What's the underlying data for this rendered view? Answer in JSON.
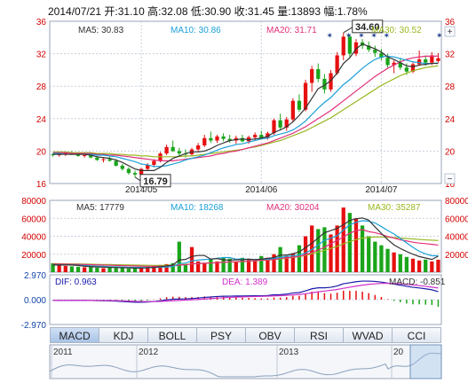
{
  "header": {
    "date": "2014/07/21",
    "open_label": "开:",
    "open": "31.10",
    "high_label": "高:",
    "high": "32.08",
    "low_label": "低:",
    "low": "30.90",
    "close_label": "收:",
    "close": "31.45",
    "volume_label": "量:",
    "volume": "13893",
    "change_label": "幅:",
    "change": "1.78%"
  },
  "price_legend": {
    "ma5": "MA5: 30.83",
    "ma10": "MA10: 30.86",
    "ma20": "MA20: 31.71",
    "ma30": "MA30: 30.52"
  },
  "volume_legend": {
    "ma5": "MA5: 17779",
    "ma10": "MA10: 18268",
    "ma20": "MA20: 30204",
    "ma30": "MA30: 35287"
  },
  "macd_legend": {
    "dif": "DIF: 0.963",
    "dea": "DEA: 1.389",
    "macd": "MACD: -0.851"
  },
  "colors": {
    "up": "#e61010",
    "down": "#1aa51a",
    "ma5": "#333333",
    "ma10": "#1aa0d8",
    "ma20": "#e0307a",
    "ma30": "#98b820",
    "grid": "#c8d0dc",
    "axis_red": "#d40000",
    "axis_blue": "#1144aa"
  },
  "tabs": [
    "MACD",
    "KDJ",
    "BOLL",
    "PSY",
    "OBV",
    "RSI",
    "WVAD",
    "CCI"
  ],
  "active_tab": "MACD",
  "navigator": {
    "years": [
      "2011",
      "2012",
      "2013",
      "20"
    ]
  },
  "chart_data": [
    {
      "type": "candlestick",
      "yticks": [
        "36",
        "32",
        "28",
        "24",
        "20",
        "16"
      ],
      "ylim": [
        16,
        36
      ],
      "xticks": [
        "2014/05",
        "2014/06",
        "2014/07"
      ],
      "annotations": {
        "max": "34.60",
        "min": "16.79"
      },
      "candles": [
        [
          19.6,
          19.7,
          19.3,
          19.5
        ],
        [
          19.5,
          19.8,
          19.3,
          19.6
        ],
        [
          19.6,
          19.9,
          19.4,
          19.8
        ],
        [
          19.8,
          20.0,
          19.5,
          19.6
        ],
        [
          19.6,
          19.8,
          19.3,
          19.4
        ],
        [
          19.4,
          19.6,
          19.2,
          19.5
        ],
        [
          19.5,
          19.7,
          19.1,
          19.2
        ],
        [
          19.2,
          19.4,
          18.8,
          18.9
        ],
        [
          18.9,
          19.2,
          18.6,
          19.0
        ],
        [
          19.0,
          19.3,
          18.7,
          18.8
        ],
        [
          18.8,
          19.0,
          18.1,
          18.2
        ],
        [
          18.2,
          18.4,
          17.6,
          17.8
        ],
        [
          17.8,
          18.0,
          17.1,
          17.3
        ],
        [
          17.3,
          17.6,
          16.79,
          17.1
        ],
        [
          17.1,
          17.9,
          17.0,
          17.8
        ],
        [
          17.8,
          18.5,
          17.6,
          18.3
        ],
        [
          18.3,
          19.0,
          18.0,
          18.8
        ],
        [
          18.8,
          19.9,
          18.6,
          19.7
        ],
        [
          19.7,
          20.8,
          19.5,
          20.5
        ],
        [
          20.5,
          21.3,
          19.9,
          20.0
        ],
        [
          20.0,
          20.4,
          19.4,
          19.7
        ],
        [
          19.7,
          20.2,
          19.2,
          19.6
        ],
        [
          19.6,
          20.4,
          19.4,
          20.2
        ],
        [
          20.2,
          21.0,
          19.9,
          20.7
        ],
        [
          20.7,
          22.0,
          20.5,
          21.6
        ],
        [
          21.6,
          22.4,
          21.0,
          21.3
        ],
        [
          21.3,
          22.0,
          21.0,
          21.8
        ],
        [
          21.8,
          22.2,
          21.2,
          21.5
        ],
        [
          21.5,
          22.0,
          21.0,
          21.3
        ],
        [
          21.3,
          21.9,
          20.9,
          21.6
        ],
        [
          21.6,
          22.0,
          21.1,
          21.2
        ],
        [
          21.2,
          21.9,
          20.9,
          21.7
        ],
        [
          21.7,
          22.3,
          21.3,
          22.0
        ],
        [
          22.0,
          22.5,
          21.5,
          21.6
        ],
        [
          21.6,
          22.4,
          21.4,
          22.2
        ],
        [
          22.2,
          24.0,
          22.0,
          23.8
        ],
        [
          23.8,
          24.6,
          22.6,
          22.9
        ],
        [
          22.9,
          24.2,
          22.5,
          23.9
        ],
        [
          23.9,
          26.5,
          23.6,
          26.2
        ],
        [
          26.2,
          27.0,
          24.8,
          25.1
        ],
        [
          25.1,
          28.8,
          24.9,
          28.4
        ],
        [
          28.4,
          30.5,
          27.3,
          30.1
        ],
        [
          30.1,
          30.8,
          28.5,
          28.9
        ],
        [
          28.9,
          29.5,
          27.1,
          27.6
        ],
        [
          27.6,
          30.0,
          27.3,
          29.6
        ],
        [
          29.6,
          32.2,
          29.4,
          31.8
        ],
        [
          31.8,
          34.6,
          31.2,
          34.1
        ],
        [
          34.1,
          34.4,
          31.6,
          32.0
        ],
        [
          32.0,
          33.8,
          31.7,
          33.4
        ],
        [
          33.4,
          33.8,
          32.6,
          33.0
        ],
        [
          33.0,
          33.5,
          32.2,
          32.5
        ],
        [
          32.5,
          33.0,
          31.6,
          32.1
        ],
        [
          32.1,
          32.6,
          31.2,
          31.5
        ],
        [
          31.5,
          32.0,
          30.3,
          30.6
        ],
        [
          30.6,
          31.2,
          29.6,
          30.9
        ],
        [
          30.9,
          31.5,
          30.0,
          30.3
        ],
        [
          30.3,
          30.8,
          29.4,
          29.8
        ],
        [
          29.8,
          31.0,
          29.6,
          30.7
        ],
        [
          30.7,
          32.4,
          30.5,
          31.3
        ],
        [
          31.3,
          31.8,
          30.5,
          30.9
        ],
        [
          30.9,
          32.2,
          30.6,
          31.8
        ],
        [
          31.1,
          32.08,
          30.9,
          31.45
        ]
      ],
      "ma5": [
        19.6,
        19.6,
        19.6,
        19.6,
        19.6,
        19.6,
        19.5,
        19.3,
        19.2,
        19.1,
        18.9,
        18.6,
        18.2,
        17.8,
        17.6,
        17.6,
        17.6,
        18.0,
        18.6,
        19.1,
        19.4,
        19.7,
        19.9,
        19.9,
        20.0,
        20.3,
        20.7,
        21.0,
        21.3,
        21.4,
        21.5,
        21.4,
        21.5,
        21.6,
        21.8,
        22.3,
        22.6,
        23.0,
        23.6,
        24.4,
        25.3,
        26.5,
        27.7,
        28.1,
        28.7,
        29.6,
        30.8,
        31.5,
        32.6,
        33.2,
        32.9,
        32.6,
        32.2,
        31.6,
        31.3,
        30.9,
        30.5,
        30.4,
        30.6,
        30.7,
        30.8,
        30.8
      ],
      "ma10": [
        19.7,
        19.7,
        19.6,
        19.6,
        19.6,
        19.6,
        19.6,
        19.5,
        19.5,
        19.4,
        19.3,
        19.1,
        18.9,
        18.7,
        18.4,
        18.3,
        18.1,
        18.1,
        18.2,
        18.4,
        18.6,
        18.9,
        19.1,
        19.3,
        19.5,
        19.8,
        20.1,
        20.4,
        20.6,
        20.8,
        20.9,
        21.1,
        21.3,
        21.5,
        21.6,
        21.9,
        22.1,
        22.3,
        22.6,
        23.1,
        23.7,
        24.5,
        25.3,
        26.0,
        26.6,
        27.4,
        28.2,
        28.8,
        29.5,
        30.2,
        30.8,
        31.3,
        31.6,
        31.7,
        31.6,
        31.4,
        31.2,
        31.0,
        30.9,
        30.8,
        30.8,
        30.86
      ],
      "ma20": [
        19.8,
        19.8,
        19.8,
        19.7,
        19.7,
        19.7,
        19.7,
        19.6,
        19.6,
        19.5,
        19.5,
        19.4,
        19.3,
        19.2,
        19.1,
        19.0,
        18.9,
        18.8,
        18.8,
        18.8,
        18.9,
        19.0,
        19.1,
        19.2,
        19.3,
        19.4,
        19.6,
        19.7,
        19.9,
        20.0,
        20.2,
        20.4,
        20.6,
        20.8,
        21.0,
        21.3,
        21.6,
        21.9,
        22.2,
        22.6,
        23.0,
        23.5,
        24.0,
        24.5,
        25.0,
        25.6,
        26.2,
        26.8,
        27.4,
        28.0,
        28.6,
        29.2,
        29.7,
        30.2,
        30.6,
        31.0,
        31.3,
        31.5,
        31.6,
        31.7,
        31.7,
        31.71
      ],
      "ma30": [
        19.9,
        19.9,
        19.9,
        19.8,
        19.8,
        19.8,
        19.8,
        19.7,
        19.7,
        19.7,
        19.6,
        19.6,
        19.5,
        19.5,
        19.4,
        19.4,
        19.3,
        19.3,
        19.3,
        19.3,
        19.3,
        19.4,
        19.4,
        19.5,
        19.6,
        19.7,
        19.8,
        19.9,
        20.0,
        20.1,
        20.2,
        20.4,
        20.5,
        20.7,
        20.9,
        21.1,
        21.3,
        21.6,
        21.9,
        22.2,
        22.5,
        22.9,
        23.3,
        23.7,
        24.1,
        24.6,
        25.1,
        25.6,
        26.1,
        26.6,
        27.1,
        27.6,
        28.1,
        28.5,
        28.9,
        29.3,
        29.6,
        29.9,
        30.1,
        30.3,
        30.4,
        30.52
      ]
    },
    {
      "type": "bar",
      "yticks": [
        "80000",
        "60000",
        "40000",
        "20000"
      ],
      "ylim": [
        0,
        80000
      ],
      "volumes": [
        10000,
        8000,
        7000,
        6500,
        6000,
        5500,
        6000,
        5000,
        4500,
        5000,
        4500,
        5000,
        4000,
        4500,
        5000,
        6000,
        7000,
        8000,
        9000,
        10000,
        34000,
        9000,
        28000,
        12000,
        10000,
        14000,
        12000,
        16000,
        15000,
        12000,
        16000,
        14000,
        13000,
        18000,
        16000,
        20000,
        28000,
        18000,
        21000,
        30000,
        40000,
        52000,
        48000,
        50000,
        42000,
        52000,
        72000,
        66000,
        60000,
        52000,
        40000,
        34000,
        30000,
        26000,
        22000,
        20000,
        17000,
        15000,
        13000,
        14000,
        12000,
        13893
      ],
      "ma5": [
        8000,
        8000,
        8000,
        8000,
        7500,
        6700,
        6200,
        5800,
        5600,
        5400,
        5200,
        5000,
        4800,
        4600,
        4600,
        4900,
        5300,
        6100,
        7000,
        8000,
        13600,
        14200,
        17600,
        18600,
        18600,
        14600,
        15200,
        13800,
        13400,
        13800,
        13800,
        14600,
        14000,
        14600,
        15400,
        16200,
        19000,
        19000,
        20600,
        22600,
        27400,
        32200,
        38200,
        44000,
        46400,
        48800,
        52800,
        57600,
        59600,
        60400,
        58000,
        50400,
        43200,
        36400,
        30400,
        26400,
        23000,
        20000,
        17400,
        15800,
        14200,
        17779
      ],
      "ma10": [
        8200,
        8200,
        8100,
        8000,
        7800,
        7400,
        7000,
        6700,
        6400,
        6100,
        5900,
        5700,
        5500,
        5300,
        5200,
        5200,
        5300,
        5500,
        5800,
        6300,
        9600,
        10200,
        12600,
        13500,
        14200,
        14400,
        15500,
        16300,
        16300,
        14500,
        14700,
        14200,
        14100,
        14400,
        14600,
        15400,
        16400,
        17600,
        18300,
        19100,
        21400,
        25200,
        30400,
        35500,
        37800,
        40500,
        47000,
        52800,
        55600,
        57400,
        56700,
        54800,
        50800,
        46400,
        42600,
        37700,
        32600,
        27700,
        23200,
        20400,
        18300,
        18268
      ],
      "ma20": [
        9000,
        9000,
        8900,
        8800,
        8700,
        8500,
        8300,
        8100,
        7900,
        7700,
        7500,
        7300,
        7100,
        6900,
        6700,
        6600,
        6600,
        6600,
        6700,
        6900,
        7900,
        8300,
        9200,
        9600,
        9900,
        10200,
        10500,
        11100,
        11400,
        11600,
        12000,
        12300,
        12800,
        13300,
        13700,
        14100,
        15300,
        16000,
        16800,
        17600,
        19400,
        22100,
        24700,
        27700,
        31800,
        35400,
        39400,
        43400,
        46400,
        47400,
        45200,
        44000,
        42000,
        39800,
        38000,
        36000,
        34800,
        33400,
        32400,
        31800,
        31000,
        30204
      ],
      "ma30": [
        9500,
        9400,
        9300,
        9200,
        9100,
        9000,
        8900,
        8700,
        8600,
        8500,
        8300,
        8200,
        8000,
        7900,
        7800,
        7700,
        7600,
        7600,
        7700,
        7900,
        8400,
        8700,
        9200,
        9600,
        10000,
        10300,
        10600,
        11000,
        11300,
        11500,
        11800,
        12200,
        12600,
        13000,
        13500,
        14000,
        14800,
        15600,
        16400,
        17400,
        18800,
        20600,
        22400,
        24400,
        26500,
        28800,
        31600,
        34000,
        36400,
        38000,
        38800,
        39200,
        39200,
        38900,
        38500,
        38000,
        37500,
        37000,
        36500,
        36000,
        35600,
        35287
      ]
    },
    {
      "type": "macd",
      "yticks": [
        "2.970",
        "0.000",
        "-2.970"
      ],
      "ylim": [
        -2.97,
        2.97
      ],
      "dif": [
        -0.1,
        -0.1,
        -0.1,
        -0.09,
        -0.09,
        -0.09,
        -0.1,
        -0.12,
        -0.14,
        -0.15,
        -0.18,
        -0.22,
        -0.27,
        -0.31,
        -0.31,
        -0.28,
        -0.22,
        -0.13,
        -0.02,
        0.05,
        0.08,
        0.1,
        0.14,
        0.19,
        0.27,
        0.32,
        0.38,
        0.41,
        0.42,
        0.44,
        0.44,
        0.45,
        0.47,
        0.47,
        0.49,
        0.58,
        0.6,
        0.66,
        0.8,
        0.85,
        1.05,
        1.3,
        1.42,
        1.42,
        1.48,
        1.64,
        1.9,
        2.02,
        2.15,
        2.22,
        2.22,
        2.18,
        2.1,
        1.98,
        1.86,
        1.74,
        1.6,
        1.48,
        1.4,
        1.3,
        1.18,
        0.963
      ],
      "dea": [
        -0.08,
        -0.08,
        -0.08,
        -0.08,
        -0.08,
        -0.08,
        -0.09,
        -0.09,
        -0.1,
        -0.11,
        -0.12,
        -0.14,
        -0.17,
        -0.2,
        -0.22,
        -0.23,
        -0.23,
        -0.21,
        -0.17,
        -0.13,
        -0.09,
        -0.05,
        -0.01,
        0.03,
        0.08,
        0.13,
        0.18,
        0.23,
        0.27,
        0.3,
        0.33,
        0.35,
        0.38,
        0.4,
        0.42,
        0.45,
        0.48,
        0.51,
        0.57,
        0.62,
        0.71,
        0.82,
        0.94,
        1.03,
        1.12,
        1.22,
        1.36,
        1.49,
        1.62,
        1.74,
        1.83,
        1.9,
        1.94,
        1.95,
        1.93,
        1.89,
        1.83,
        1.76,
        1.68,
        1.6,
        1.5,
        1.389
      ]
    }
  ]
}
